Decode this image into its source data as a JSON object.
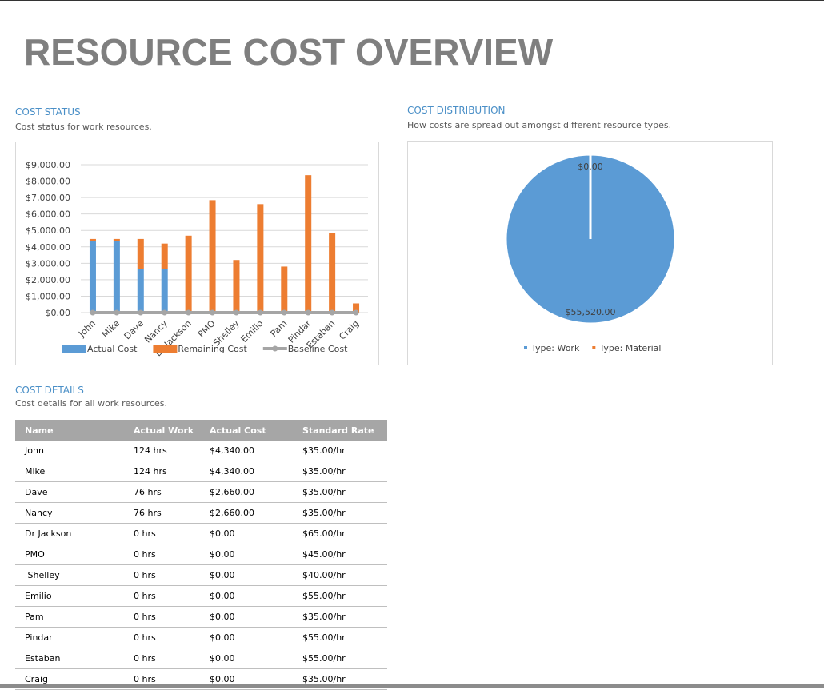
{
  "title": "RESOURCE COST OVERVIEW",
  "chart_data": [
    {
      "type": "bar",
      "stacked": true,
      "title": "COST STATUS",
      "subtitle": "Cost status for work resources.",
      "categories": [
        "John",
        "Mike",
        "Dave",
        "Nancy",
        "Dr Jackson",
        "PMO",
        "Shelley",
        "Emilio",
        "Pam",
        "Pindar",
        "Estaban",
        "Craig"
      ],
      "series": [
        {
          "name": "Actual Cost",
          "color": "#5b9bd5",
          "values": [
            4340,
            4340,
            2660,
            2660,
            0,
            0,
            0,
            0,
            0,
            0,
            0,
            0
          ]
        },
        {
          "name": "Remaining Cost",
          "color": "#ed7d31",
          "values": [
            140,
            140,
            1820,
            1540,
            4680,
            6840,
            3200,
            6600,
            2800,
            8360,
            4840,
            560
          ]
        },
        {
          "name": "Baseline Cost",
          "type": "line",
          "color": "#a5a5a5",
          "values": [
            0,
            0,
            0,
            0,
            0,
            0,
            0,
            0,
            0,
            0,
            0,
            0
          ]
        }
      ],
      "ylim": [
        0,
        9000
      ],
      "yticks": [
        {
          "value": 0,
          "label": "$0.00"
        },
        {
          "value": 1000,
          "label": "$1,000.00"
        },
        {
          "value": 2000,
          "label": "$2,000.00"
        },
        {
          "value": 3000,
          "label": "$3,000.00"
        },
        {
          "value": 4000,
          "label": "$4,000.00"
        },
        {
          "value": 5000,
          "label": "$5,000.00"
        },
        {
          "value": 6000,
          "label": "$6,000.00"
        },
        {
          "value": 7000,
          "label": "$7,000.00"
        },
        {
          "value": 8000,
          "label": "$8,000.00"
        },
        {
          "value": 9000,
          "label": "$9,000.00"
        }
      ],
      "grid": true,
      "legend": "bottom"
    },
    {
      "type": "pie",
      "title": "COST DISTRIBUTION",
      "subtitle": "How costs are spread out amongst different resource types.",
      "categories": [
        "Type: Work",
        "Type: Material"
      ],
      "values": [
        55520,
        0
      ],
      "value_labels": [
        "$55,520.00",
        "$0.00"
      ],
      "colors": [
        "#5b9bd5",
        "#ed7d31"
      ],
      "legend": "bottom"
    }
  ],
  "table": {
    "title": "COST DETAILS",
    "subtitle": "Cost details for all work resources.",
    "columns": [
      "Name",
      "Actual Work",
      "Actual Cost",
      "Standard Rate"
    ],
    "rows": [
      [
        "John",
        "124 hrs",
        "$4,340.00",
        "$35.00/hr"
      ],
      [
        "Mike",
        "124 hrs",
        "$4,340.00",
        "$35.00/hr"
      ],
      [
        "Dave",
        "76 hrs",
        "$2,660.00",
        "$35.00/hr"
      ],
      [
        "Nancy",
        "76 hrs",
        "$2,660.00",
        "$35.00/hr"
      ],
      [
        "Dr Jackson",
        "0 hrs",
        "$0.00",
        "$65.00/hr"
      ],
      [
        "PMO",
        "0 hrs",
        "$0.00",
        "$45.00/hr"
      ],
      [
        " Shelley",
        "0 hrs",
        "$0.00",
        "$40.00/hr"
      ],
      [
        "Emilio",
        "0 hrs",
        "$0.00",
        "$55.00/hr"
      ],
      [
        "Pam",
        "0 hrs",
        "$0.00",
        "$35.00/hr"
      ],
      [
        "Pindar",
        "0 hrs",
        "$0.00",
        "$55.00/hr"
      ],
      [
        "Estaban",
        "0 hrs",
        "$0.00",
        "$55.00/hr"
      ],
      [
        "Craig",
        "0 hrs",
        "$0.00",
        "$35.00/hr"
      ]
    ]
  }
}
